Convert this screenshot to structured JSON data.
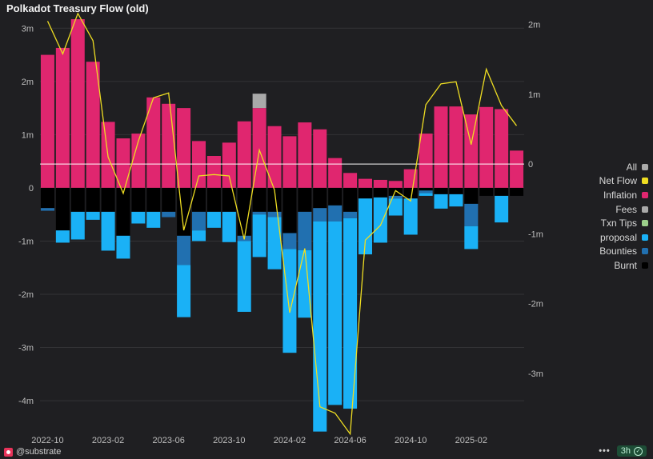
{
  "colors": {
    "inflation": "#e0266f",
    "proposal": "#1ab1f6",
    "bounties": "#2170b0",
    "burnt": "#000000",
    "fees": "#a9a9a9",
    "txn_tips": "#9ccf8b",
    "net_flow": "#eedd22",
    "all": "#aaaaaa"
  },
  "chart_data": {
    "type": "bar",
    "title": "Polkadot Treasury Flow (old)",
    "stacked": true,
    "ylim_left": [
      -4.6,
      3.2
    ],
    "ylim_right": [
      -3.85,
      2.1
    ],
    "left_ticks": [
      {
        "value": 3,
        "label": "3m"
      },
      {
        "value": 2,
        "label": "2m"
      },
      {
        "value": 1,
        "label": "1m"
      },
      {
        "value": 0,
        "label": "0"
      },
      {
        "value": -1,
        "label": "-1m"
      },
      {
        "value": -2,
        "label": "-2m"
      },
      {
        "value": -3,
        "label": "-3m"
      },
      {
        "value": -4,
        "label": "-4m"
      }
    ],
    "right_ticks": [
      {
        "value": 2,
        "label": "2m"
      },
      {
        "value": 1,
        "label": "1m"
      },
      {
        "value": 0,
        "label": "0"
      },
      {
        "value": -1,
        "label": "-1m"
      },
      {
        "value": -2,
        "label": "-2m"
      },
      {
        "value": -3,
        "label": "-3m"
      }
    ],
    "x_tick_labels": [
      {
        "index": 0,
        "label": "2022-10"
      },
      {
        "index": 4,
        "label": "2023-02"
      },
      {
        "index": 8,
        "label": "2023-06"
      },
      {
        "index": 12,
        "label": "2023-10"
      },
      {
        "index": 16,
        "label": "2024-02"
      },
      {
        "index": 20,
        "label": "2024-06"
      },
      {
        "index": 24,
        "label": "2024-10"
      },
      {
        "index": 28,
        "label": "2025-02"
      }
    ],
    "series_order": [
      "inflation",
      "fees",
      "txn_tips",
      "burnt",
      "bounties",
      "proposal"
    ],
    "series": [
      {
        "key": "inflation",
        "name": "Inflation",
        "values": [
          2.5,
          2.63,
          3.17,
          2.37,
          1.24,
          0.93,
          1.02,
          1.7,
          1.58,
          1.5,
          0.88,
          0.6,
          0.85,
          1.25,
          1.5,
          1.16,
          0.97,
          1.23,
          1.1,
          0.56,
          0.28,
          0.17,
          0.15,
          0.13,
          0.35,
          1.02,
          1.53,
          1.53,
          1.38,
          1.52,
          1.48,
          0.7
        ]
      },
      {
        "key": "fees",
        "name": "Fees",
        "values": [
          0,
          0,
          0,
          0,
          0,
          0,
          0,
          0,
          0,
          0,
          0,
          0,
          0,
          0,
          0.27,
          0,
          0,
          0,
          0,
          0,
          0,
          0,
          0,
          0,
          0,
          0,
          0,
          0,
          0,
          0,
          0,
          0
        ]
      },
      {
        "key": "txn_tips",
        "name": "Txn Tips",
        "values": [
          0,
          0,
          0,
          0,
          0,
          0,
          0,
          0,
          0,
          0,
          0,
          0,
          0,
          0,
          0,
          0,
          0,
          0,
          0,
          0,
          0,
          0,
          0,
          0,
          0,
          0,
          0,
          0,
          0,
          0,
          0,
          0
        ]
      },
      {
        "key": "burnt",
        "name": "Burnt",
        "values": [
          -0.38,
          -0.8,
          -0.45,
          -0.45,
          -0.45,
          -0.9,
          -0.45,
          -0.45,
          -0.45,
          -0.9,
          -0.45,
          -0.45,
          -0.45,
          -0.9,
          -0.45,
          -0.45,
          -0.85,
          -0.45,
          -0.38,
          -0.33,
          -0.45,
          -0.2,
          -0.18,
          -0.15,
          -0.2,
          -0.05,
          -0.12,
          -0.12,
          -0.3,
          -0.15,
          -0.15,
          -0.15
        ]
      },
      {
        "key": "bounties",
        "name": "Bounties",
        "values": [
          -0.05,
          0,
          0,
          0,
          0,
          0,
          0,
          0,
          -0.1,
          -0.55,
          -0.35,
          0,
          0,
          -0.1,
          -0.05,
          -0.1,
          -0.3,
          -0.72,
          -0.25,
          -0.3,
          -0.12,
          0,
          0,
          -0.05,
          0,
          -0.05,
          0,
          0,
          -0.42,
          0,
          0,
          0
        ]
      },
      {
        "key": "proposal",
        "name": "proposal",
        "values": [
          0,
          -0.23,
          -0.52,
          -0.15,
          -0.73,
          -0.43,
          -0.22,
          -0.3,
          0,
          -0.98,
          -0.2,
          -0.3,
          -0.57,
          -1.33,
          -0.8,
          -0.98,
          -1.95,
          -1.27,
          -3.95,
          -3.45,
          -3.58,
          -1.05,
          -0.85,
          -0.32,
          -0.68,
          -0.05,
          -0.27,
          -0.23,
          -0.43,
          0,
          -0.5,
          0
        ]
      }
    ],
    "net_flow": {
      "name": "Net Flow",
      "axis": "right",
      "values": [
        2.05,
        1.58,
        2.16,
        1.77,
        0.1,
        -0.42,
        0.33,
        0.95,
        1.02,
        -0.95,
        -0.17,
        -0.15,
        -0.17,
        -1.08,
        0.2,
        -0.37,
        -2.13,
        -1.21,
        -3.48,
        -3.57,
        -3.87,
        -1.09,
        -0.88,
        -0.38,
        -0.53,
        0.85,
        1.15,
        1.18,
        0.28,
        1.36,
        0.84,
        0.55
      ]
    }
  },
  "legend": [
    {
      "key": "all",
      "label": "All"
    },
    {
      "key": "net_flow",
      "label": "Net Flow"
    },
    {
      "key": "inflation",
      "label": "Inflation"
    },
    {
      "key": "fees",
      "label": "Fees"
    },
    {
      "key": "txn_tips",
      "label": "Txn Tips"
    },
    {
      "key": "proposal",
      "label": "proposal"
    },
    {
      "key": "bounties",
      "label": "Bounties"
    },
    {
      "key": "burnt",
      "label": "Burnt"
    }
  ],
  "footer": {
    "handle": "@substrate",
    "more_icon": "more-dots-icon",
    "refresh_label": "3h"
  }
}
